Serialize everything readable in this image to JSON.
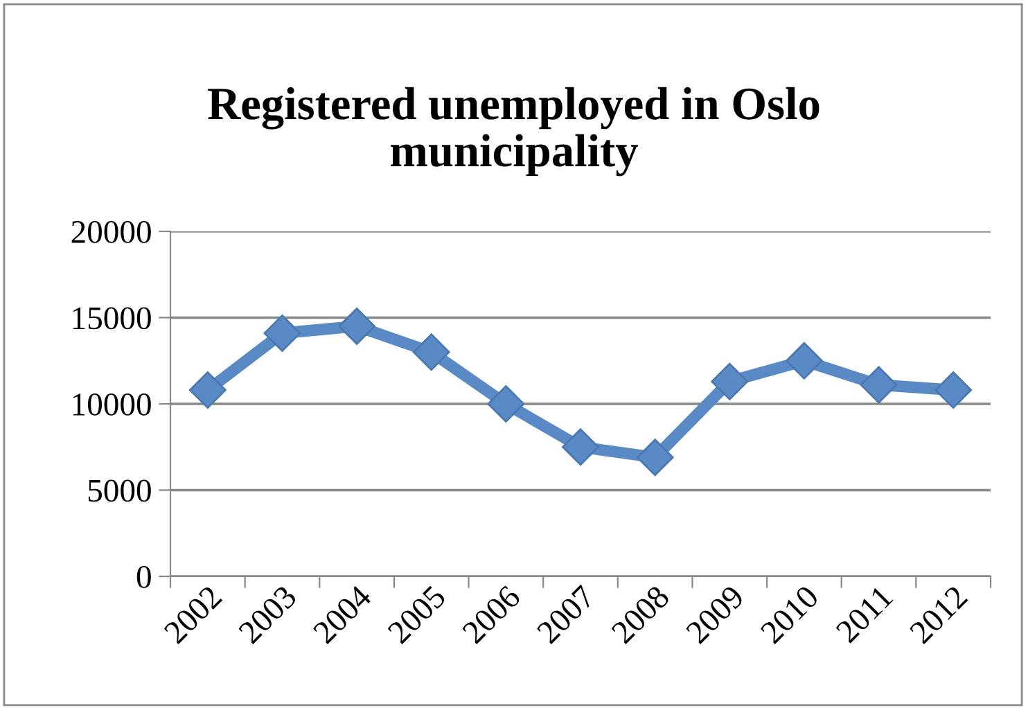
{
  "chart_data": {
    "type": "line",
    "title": "Registered unemployed in Oslo\nmunicipality",
    "categories": [
      "2002",
      "2003",
      "2004",
      "2005",
      "2006",
      "2007",
      "2008",
      "2009",
      "2010",
      "2011",
      "2012"
    ],
    "series": [
      {
        "color": "#5a8ac6",
        "values": [
          10800,
          14100,
          14500,
          13000,
          10000,
          7500,
          6900,
          11300,
          12500,
          11100,
          10800
        ]
      }
    ],
    "ylim": [
      0,
      20000
    ],
    "yticks": [
      0,
      5000,
      10000,
      15000,
      20000
    ],
    "grid": "y",
    "marker": "diamond",
    "line_style": "solid"
  }
}
